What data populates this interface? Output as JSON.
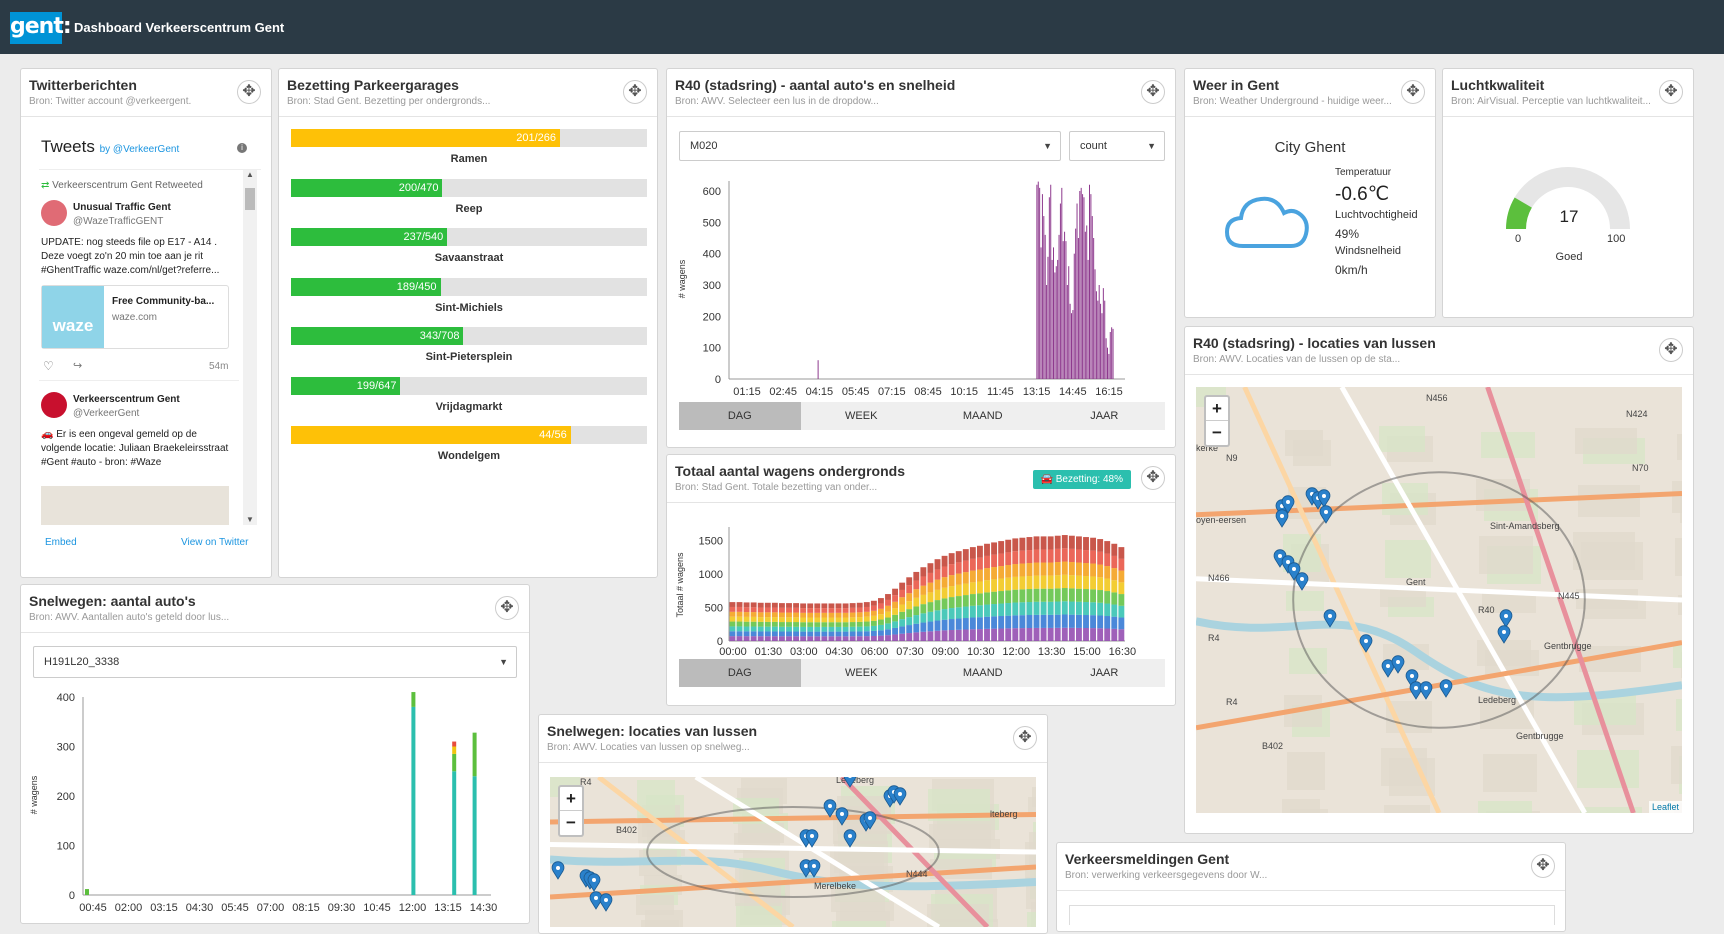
{
  "app": {
    "logo": "gent:",
    "title": "Dashboard Verkeerscentrum Gent"
  },
  "twitter": {
    "title": "Twitterberichten",
    "subtitle": "Bron: Twitter account @verkeergent.",
    "tweets_heading": "Tweets",
    "by": "by @VerkeerGent",
    "retweet_note": "Verkeerscentrum Gent Retweeted",
    "t1_name": "Unusual Traffic Gent",
    "t1_handle": "@WazeTrafficGENT",
    "t1_text": "UPDATE: nog steeds file op E17 - A14 . Deze voegt zo'n 20 min toe aan je rit #GhentTraffic waze.com/nl/get?referre...",
    "card_title": "Free Community-ba...",
    "card_domain": "waze.com",
    "card_logo": "waze",
    "t1_time": "54m",
    "t2_name": "Verkeerscentrum Gent",
    "t2_handle": "@VerkeerGent",
    "t2_text": "🚗 Er is een ongeval gemeld op de volgende locatie: Juliaan Braekeleirsstraat #Gent #auto - bron: #Waze",
    "embed": "Embed",
    "view": "View on Twitter"
  },
  "parking": {
    "title": "Bezetting Parkeergarages",
    "subtitle": "Bron: Stad Gent. Bezetting per ondergronds...",
    "items": [
      {
        "name": "Ramen",
        "value": "201/266",
        "occupied": 201,
        "capacity": 266,
        "color": "#fec107"
      },
      {
        "name": "Reep",
        "value": "200/470",
        "occupied": 200,
        "capacity": 470,
        "color": "#2dbd3d"
      },
      {
        "name": "Savaanstraat",
        "value": "237/540",
        "occupied": 237,
        "capacity": 540,
        "color": "#2dbd3d"
      },
      {
        "name": "Sint-Michiels",
        "value": "189/450",
        "occupied": 189,
        "capacity": 450,
        "color": "#2dbd3d"
      },
      {
        "name": "Sint-Pietersplein",
        "value": "343/708",
        "occupied": 343,
        "capacity": 708,
        "color": "#2dbd3d"
      },
      {
        "name": "Vrijdagmarkt",
        "value": "199/647",
        "occupied": 199,
        "capacity": 647,
        "color": "#2dbd3d"
      },
      {
        "name": "Wondelgem",
        "value": "44/56",
        "occupied": 44,
        "capacity": 56,
        "color": "#fec107"
      }
    ]
  },
  "r40": {
    "title": "R40 (stadsring) - aantal auto's en snelheid",
    "subtitle": "Bron: AWV. Selecteer een lus in de dropdow...",
    "select1": "M020",
    "select2": "count",
    "tabs": [
      "DAG",
      "WEEK",
      "MAAND",
      "JAAR"
    ]
  },
  "weather": {
    "title": "Weer in Gent",
    "subtitle": "Bron: Weather Underground - huidige weer...",
    "city": "City Ghent",
    "temp_label": "Temperatuur",
    "temp": "-0.6℃",
    "hum_label": "Luchtvochtigheid",
    "hum": "49%",
    "wind_label": "Windsnelheid",
    "wind": "0km/h",
    "icon": "cloud-icon"
  },
  "air": {
    "title": "Luchtkwaliteit",
    "subtitle": "Bron: AirVisual. Perceptie van luchtkwaliteit...",
    "value": "17",
    "min": "0",
    "max": "100",
    "label": "Goed",
    "gauge": {
      "value": 17,
      "min": 0,
      "max": 100,
      "color": "#5cbf3d"
    }
  },
  "loops": {
    "title": "R40 (stadsring) - locaties van lussen",
    "subtitle": "Bron: AWV. Locaties van de lussen op de sta...",
    "attribution": "Leaflet",
    "zoom_in": "+",
    "zoom_out": "−",
    "labels": [
      "N456",
      "N424",
      "N9",
      "N70",
      "Sint-Amandsberg",
      "Gent",
      "N466",
      "N445",
      "R40",
      "Gentbrugge",
      "R4",
      "Ledeberg",
      "B402",
      "Gentbrugge",
      "R4",
      "oyen-eersen",
      "kerke"
    ]
  },
  "total": {
    "title": "Totaal aantal wagens ondergronds",
    "subtitle": "Bron: Stad Gent. Totale bezetting van onder...",
    "badge": "Bezetting: 48%",
    "tabs": [
      "DAG",
      "WEEK",
      "MAAND",
      "JAAR"
    ]
  },
  "snel": {
    "title": "Snelwegen: aantal auto's",
    "subtitle": "Bron: AWV. Aantallen auto's geteld door lus...",
    "select": "H191L20_3338"
  },
  "snelmap": {
    "title": "Snelwegen: locaties van lussen",
    "subtitle": "Bron: AWV. Locaties van lussen op snelweg...",
    "zoom_in": "+",
    "zoom_out": "−",
    "labels": [
      "R4",
      "B402",
      "Ledeberg",
      "N444",
      "Merelbeke",
      "lteberg"
    ]
  },
  "meldingen": {
    "title": "Verkeersmeldingen Gent",
    "subtitle": "Bron: verwerking verkeersgegevens door W..."
  },
  "colors": {
    "topbar": "#2b3a45",
    "logo": "#0093d6",
    "purple": "#8e3a8e",
    "teal": "#2bbfae",
    "green": "#2dbd3d",
    "yellow": "#fec107"
  },
  "chart_data": [
    {
      "type": "bar",
      "ylabel": "# wagens",
      "ylim": [
        0,
        600
      ],
      "x_ticks": [
        "01:15",
        "02:45",
        "04:15",
        "05:45",
        "07:15",
        "08:45",
        "10:15",
        "11:45",
        "13:15",
        "14:45",
        "16:15"
      ],
      "y_ticks": [
        "0",
        "100",
        "200",
        "300",
        "400",
        "500",
        "600"
      ],
      "series": [
        {
          "values": [
            0,
            0,
            0,
            0,
            0,
            0,
            0,
            0,
            0,
            0,
            0,
            0,
            0,
            0,
            0,
            0,
            0,
            0,
            0,
            0,
            0,
            0,
            0,
            0,
            0,
            0,
            0,
            0,
            0,
            0,
            0,
            0,
            0,
            0,
            0,
            0,
            0,
            0,
            0,
            0,
            0,
            0,
            0,
            0,
            0,
            0,
            0,
            0,
            0,
            0,
            0,
            0,
            0,
            0,
            0,
            0,
            0,
            0,
            0,
            0,
            0,
            0,
            0,
            0,
            60,
            0,
            0,
            0,
            0,
            0,
            0,
            0,
            0,
            0,
            0,
            0,
            0,
            0,
            0,
            0,
            0,
            0,
            0,
            0,
            0,
            0,
            0,
            0,
            0,
            0,
            0,
            0,
            0,
            0,
            0,
            0,
            0,
            0,
            0,
            0,
            0,
            0,
            0,
            0,
            0,
            0,
            0,
            0,
            0,
            0,
            0,
            0,
            0,
            0,
            0,
            0,
            0,
            0,
            0,
            0,
            0,
            0,
            0,
            0,
            0,
            0,
            0,
            0,
            0,
            0,
            0,
            0,
            0,
            0,
            0,
            0,
            0,
            0,
            0,
            0,
            0,
            0,
            0,
            0,
            0,
            0,
            0,
            0,
            0,
            0,
            0,
            0,
            0,
            0,
            0,
            0,
            0,
            0,
            0,
            0,
            0,
            0,
            0,
            0,
            0,
            0,
            0,
            0,
            0,
            0,
            0,
            0,
            0,
            0,
            0,
            0,
            0,
            0,
            0,
            0,
            0,
            0,
            0,
            0,
            0,
            0,
            0,
            0,
            0,
            0,
            0,
            0,
            0,
            0,
            0,
            0,
            0,
            0,
            0,
            0,
            0,
            0,
            0,
            0,
            0,
            0,
            0,
            0,
            0,
            0,
            0,
            0,
            0,
            0,
            0,
            0,
            0,
            0,
            0,
            0,
            0,
            0,
            0,
            0,
            0,
            0,
            0,
            0,
            0,
            0,
            0,
            0,
            0,
            0,
            0,
            0,
            0,
            0,
            0,
            0,
            0,
            0,
            0,
            0,
            0,
            0,
            0,
            0,
            0,
            0,
            0,
            0,
            0,
            0,
            0,
            0,
            0,
            0,
            0,
            0,
            0,
            0,
            0,
            0,
            0,
            0,
            0,
            0,
            0,
            0,
            0,
            0,
            0,
            0,
            0,
            0,
            0,
            0,
            0,
            0,
            0,
            0,
            0,
            0,
            0,
            0
          ]
        }
      ]
    },
    {
      "type": "area",
      "ylabel": "Totaal # wagens",
      "ylim": [
        0,
        1700
      ],
      "x_ticks": [
        "00:00",
        "01:30",
        "03:00",
        "04:30",
        "06:00",
        "07:30",
        "09:00",
        "10:30",
        "12:00",
        "13:30",
        "15:00",
        "16:30"
      ],
      "y_ticks": [
        "0",
        "500",
        "1000",
        "1500"
      ],
      "values": [
        580,
        580,
        575,
        575,
        570,
        570,
        570,
        565,
        565,
        565,
        560,
        560,
        560,
        560,
        560,
        560,
        560,
        565,
        570,
        580,
        600,
        640,
        700,
        780,
        870,
        950,
        1030,
        1100,
        1160,
        1220,
        1270,
        1310,
        1340,
        1370,
        1400,
        1420,
        1450,
        1470,
        1490,
        1510,
        1530,
        1540,
        1550,
        1560,
        1560,
        1560,
        1570,
        1580,
        1570,
        1560,
        1550,
        1540,
        1520,
        1490,
        1450,
        1400
      ],
      "layer_colors": [
        "#8e44ad",
        "#2c73d2",
        "#2bbfae",
        "#5cbf3d",
        "#f1c40f",
        "#f39c12",
        "#e74c3c",
        "#c0392b"
      ]
    },
    {
      "type": "bar",
      "ylabel": "# wagens",
      "ylim": [
        0,
        400
      ],
      "x_ticks": [
        "00:45",
        "02:00",
        "03:15",
        "04:30",
        "05:45",
        "07:00",
        "08:15",
        "09:30",
        "10:45",
        "12:00",
        "13:15",
        "14:30"
      ],
      "y_ticks": [
        "0",
        "100",
        "200",
        "300",
        "400"
      ],
      "bars": [
        {
          "pos": 0,
          "segments": [
            {
              "v": 12,
              "c": "#5cbf3d"
            }
          ]
        },
        {
          "pos": 48,
          "segments": [
            {
              "v": 380,
              "c": "#2bbfae"
            },
            {
              "v": 30,
              "c": "#5cbf3d"
            }
          ]
        },
        {
          "pos": 54,
          "segments": [
            {
              "v": 250,
              "c": "#2bbfae"
            },
            {
              "v": 35,
              "c": "#5cbf3d"
            },
            {
              "v": 15,
              "c": "#f1c40f"
            },
            {
              "v": 10,
              "c": "#e74c3c"
            }
          ]
        },
        {
          "pos": 57,
          "segments": [
            {
              "v": 240,
              "c": "#2bbfae"
            },
            {
              "v": 88,
              "c": "#5cbf3d"
            }
          ]
        }
      ]
    }
  ]
}
